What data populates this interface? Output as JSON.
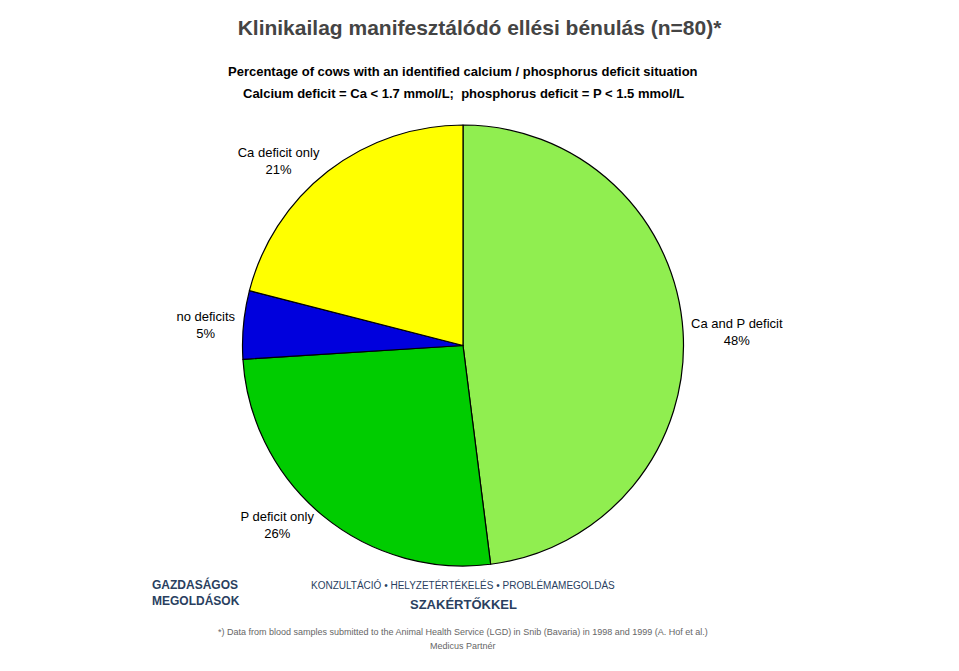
{
  "chart_data": {
    "type": "pie",
    "title": "Klinikailag manifesztálódó ellési bénulás (n=80)*",
    "subtitle": [
      "Percentage of cows with an identified calcium / phosphorus deficit situation",
      "Calcium deficit = Ca < 1.7 mmol/L;  phosphorus deficit = P < 1.5 mmol/L"
    ],
    "categories": [
      "Ca and P deficit",
      "P deficit only",
      "no deficits",
      "Ca deficit only"
    ],
    "values": [
      48,
      26,
      5,
      21
    ],
    "value_labels": [
      "48%",
      "26%",
      "5%",
      "21%"
    ],
    "colors": [
      "#90EE50",
      "#00CC00",
      "#0000DD",
      "#FFFF00"
    ],
    "data_labels": true,
    "annotations": [
      "GAZDASÁGOS\nMEGOLDÁSOK",
      "KONZULTÁCIÓ • HELYZETÉRTÉKELÉS • PROBLÉMAMEGOLDÁS",
      "SZAKÉRTŐKKEL",
      "*) Data from blood samples submitted to the Animal Health Service (LGD) in Snib (Bavaria) in 1998 and 1999 (A. Hof et al.)",
      "Medicus Partnér"
    ]
  }
}
